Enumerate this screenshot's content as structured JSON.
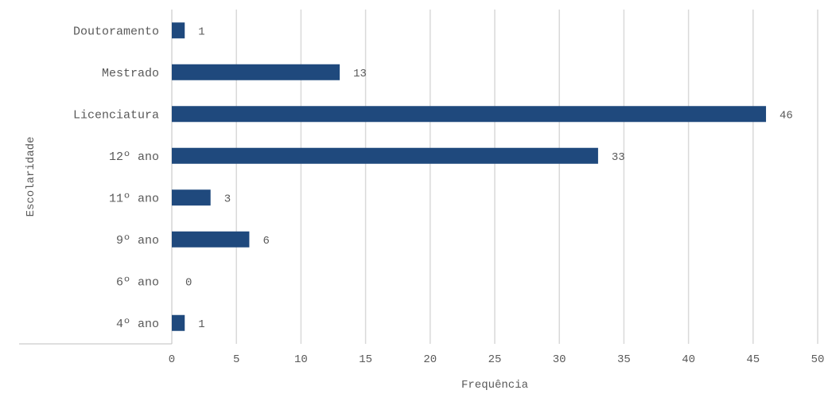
{
  "chart_data": {
    "type": "bar",
    "orientation": "horizontal",
    "title": "",
    "xlabel": "Frequência",
    "ylabel": "Escolaridade",
    "categories": [
      "Doutoramento",
      "Mestrado",
      "Licenciatura",
      "12º ano",
      "11º ano",
      "9º ano",
      "6º ano",
      "4º ano"
    ],
    "values": [
      1,
      13,
      46,
      33,
      3,
      6,
      0,
      1
    ],
    "xlim": [
      0,
      50
    ],
    "xticks": [
      0,
      5,
      10,
      15,
      20,
      25,
      30,
      35,
      40,
      45,
      50
    ],
    "grid": true,
    "legend": "none",
    "bar_color": "#1f497d",
    "data_labels": true
  }
}
